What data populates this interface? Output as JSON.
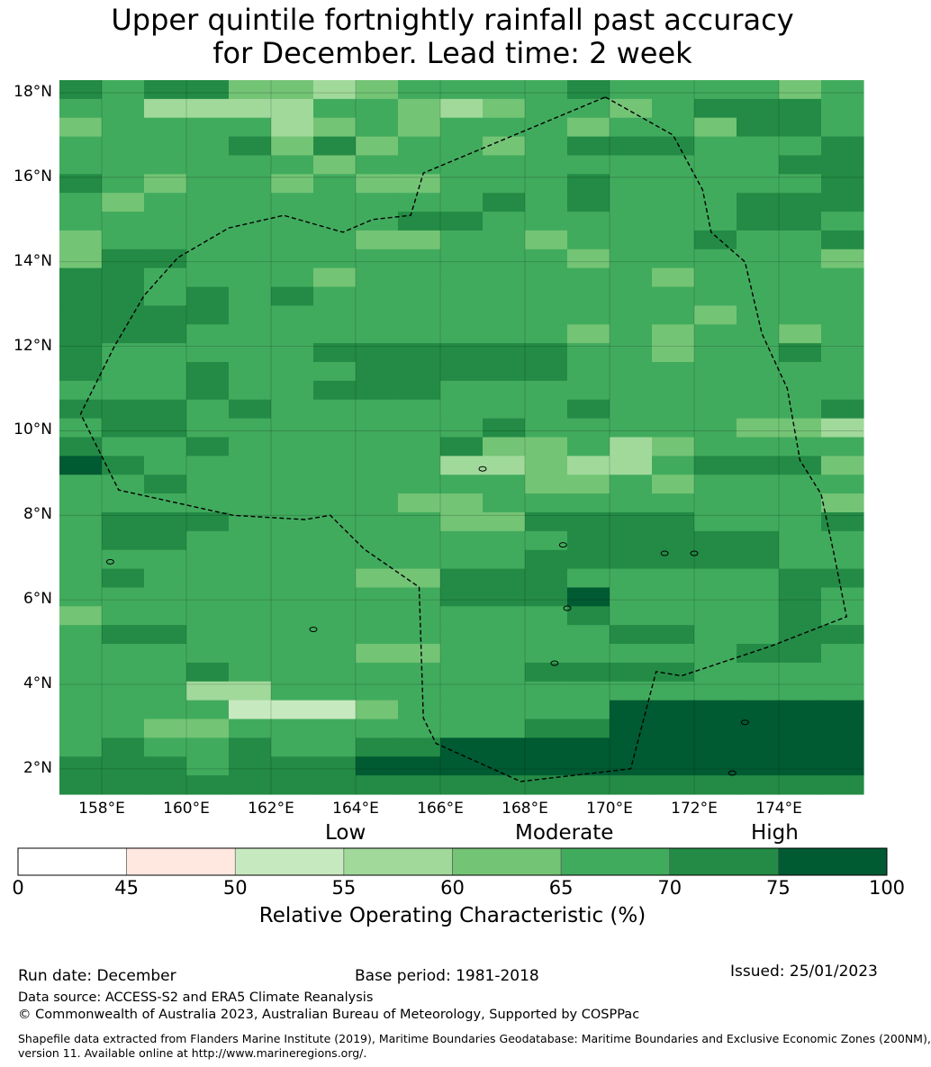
{
  "title_line1": "Upper quintile fortnightly rainfall past accuracy",
  "title_line2": "for December. Lead time: 2 week",
  "lat_ticks": [
    "18°N",
    "16°N",
    "14°N",
    "12°N",
    "10°N",
    "8°N",
    "6°N",
    "4°N",
    "2°N"
  ],
  "lon_ticks": [
    "158°E",
    "160°E",
    "162°E",
    "164°E",
    "166°E",
    "168°E",
    "170°E",
    "172°E",
    "174°E"
  ],
  "category_labels": {
    "low": "Low",
    "moderate": "Moderate",
    "high": "High"
  },
  "colorbar": {
    "ticks": [
      "0",
      "45",
      "50",
      "55",
      "60",
      "65",
      "70",
      "75",
      "100"
    ],
    "colors": [
      "#ffffff",
      "#fee8df",
      "#c7e9c0",
      "#a1d99b",
      "#74c476",
      "#41ab5d",
      "#238b45",
      "#005a32"
    ],
    "title": "Relative Operating Characteristic (%)"
  },
  "footer": {
    "run_date": "Run date: December",
    "base_period": "Base period: 1981-2018",
    "issued": "Issued: 25/01/2023",
    "data_source": "Data source: ACCESS-S2 and ERA5 Climate Reanalysis",
    "copyright": "© Commonwealth of Australia 2023, Australian Bureau of Meteorology, Supported by COSPPac",
    "shapefile_line1": "Shapefile data extracted from Flanders Marine Institute (2019), Maritime Boundaries Geodatabase: Maritime Boundaries and Exclusive Economic Zones (200NM),",
    "shapefile_line2": "version 11. Available online at http://www.marineregions.org/."
  },
  "map_data": {
    "lon_range": [
      157,
      176
    ],
    "lat_range": [
      1.4,
      18.3
    ],
    "grid_rows_top_to_bottom": [
      "6566443455556555545",
      "5533335543455456665",
      "4555534545554554665",
      "5555646455456665556",
      "5555554555555555566",
      "6545545445556555556",
      "5455555555656555666",
      "5555555566555555665",
      "4555555445545556556",
      "4665555555554555554",
      "6655554555555545555",
      "6656565555555555555",
      "6666555555555554555",
      "6665555555554545545",
      "6555556666665545565",
      "6556555666665555555",
      "5556556665555555555",
      "6665655555556555556",
      "5665555555655555443",
      "6556555556445345555",
      "7655555553343356664",
      "5565555555544545555",
      "5555555544555555554",
      "5666555554466665556",
      "5665555555556666655",
      "5555555555566666655",
      "5655555446665555566",
      "5555555556667555565",
      "4555555555556555565",
      "5665555555555665566",
      "5555555445555555665",
      "5556555555566665555",
      "5553355555555555555",
      "5555222455555777777",
      "5544555555566777777",
      "5655655667777777777",
      "6665666777777777777",
      "6666666666666666666"
    ],
    "eez_boundary_lonlat": [
      [
        169.9,
        17.9
      ],
      [
        171.5,
        17.0
      ],
      [
        172.2,
        15.7
      ],
      [
        172.4,
        14.7
      ],
      [
        173.2,
        14.0
      ],
      [
        173.6,
        12.3
      ],
      [
        174.2,
        11.0
      ],
      [
        174.5,
        9.3
      ],
      [
        175.0,
        8.5
      ],
      [
        175.3,
        7.1
      ],
      [
        175.6,
        5.6
      ],
      [
        173.8,
        4.9
      ],
      [
        171.7,
        4.2
      ],
      [
        171.1,
        4.3
      ],
      [
        170.5,
        2.0
      ],
      [
        167.9,
        1.7
      ],
      [
        165.9,
        2.6
      ],
      [
        165.6,
        3.2
      ],
      [
        165.5,
        6.3
      ],
      [
        164.2,
        7.2
      ],
      [
        163.4,
        8.0
      ],
      [
        162.8,
        7.9
      ],
      [
        161.1,
        8.0
      ],
      [
        158.4,
        8.6
      ],
      [
        157.5,
        10.4
      ],
      [
        158.3,
        12.0
      ],
      [
        159.0,
        13.2
      ],
      [
        159.8,
        14.1
      ],
      [
        161.0,
        14.8
      ],
      [
        162.3,
        15.1
      ],
      [
        163.7,
        14.7
      ],
      [
        164.4,
        15.0
      ],
      [
        165.3,
        15.1
      ],
      [
        165.6,
        16.1
      ],
      [
        169.9,
        17.9
      ]
    ]
  }
}
